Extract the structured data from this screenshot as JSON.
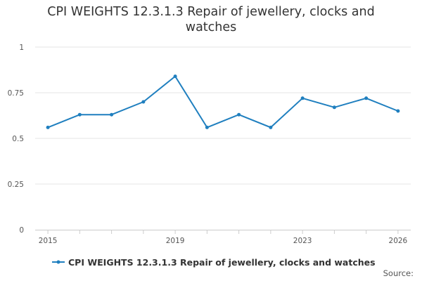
{
  "chart_data": {
    "type": "line",
    "title": "CPI WEIGHTS 12.3.1.3 Repair of jewellery, clocks and watches",
    "xlabel": "",
    "ylabel": "",
    "xlim": [
      2014.6,
      2026.4
    ],
    "ylim": [
      0,
      1
    ],
    "y_ticks": [
      0,
      0.25,
      0.5,
      0.75,
      1
    ],
    "y_tick_labels": [
      "0",
      "0.25",
      "0.5",
      "0.75",
      "1"
    ],
    "x_ticks": [
      2015,
      2016,
      2017,
      2018,
      2019,
      2020,
      2021,
      2022,
      2023,
      2024,
      2025,
      2026
    ],
    "x_tick_labels": [
      {
        "x": 2015,
        "label": "2015"
      },
      {
        "x": 2019,
        "label": "2019"
      },
      {
        "x": 2023,
        "label": "2023"
      },
      {
        "x": 2026,
        "label": "2026"
      }
    ],
    "grid": true,
    "legend_position": "bottom",
    "series": [
      {
        "name": "CPI WEIGHTS 12.3.1.3 Repair of jewellery, clocks and watches",
        "color": "#1f7fbf",
        "x": [
          2015,
          2016,
          2017,
          2018,
          2019,
          2020,
          2021,
          2022,
          2023,
          2024,
          2025,
          2026
        ],
        "values": [
          0.56,
          0.63,
          0.63,
          0.7,
          0.84,
          0.56,
          0.63,
          0.56,
          0.72,
          0.67,
          0.72,
          0.65
        ]
      }
    ]
  },
  "source_label": "Source:"
}
